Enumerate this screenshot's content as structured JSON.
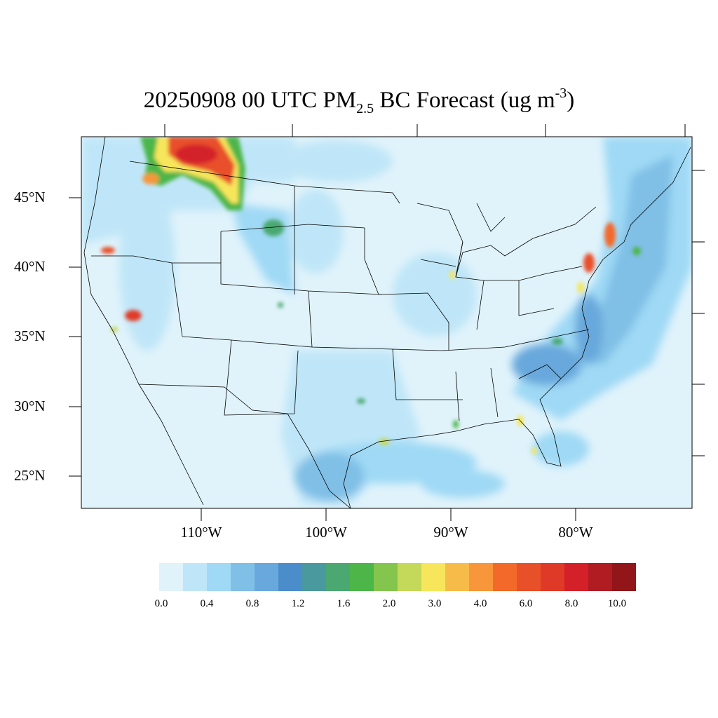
{
  "title": {
    "main": "20250908 00 UTC PM",
    "sub": "2.5",
    "mid": " BC Forecast (ug m",
    "sup": "-3",
    "end": ")"
  },
  "map": {
    "lat_labels": [
      "45°N",
      "40°N",
      "35°N",
      "30°N",
      "25°N"
    ],
    "lon_labels": [
      "110°W",
      "100°W",
      "90°W",
      "80°W"
    ],
    "background_color": "#e0f3fb"
  },
  "colorbar": {
    "colors": [
      "#e0f3fb",
      "#bfe6f8",
      "#9fd9f5",
      "#80bfe6",
      "#68a8dc",
      "#4a8dca",
      "#4a999e",
      "#4aa870",
      "#4cb648",
      "#84c64d",
      "#c4d85a",
      "#f7e65c",
      "#f7bb4a",
      "#f7963b",
      "#f3692a",
      "#e8502a",
      "#df3a27",
      "#d42129",
      "#b11c22",
      "#921619"
    ],
    "labels": [
      "0.0",
      "0.4",
      "0.8",
      "1.2",
      "1.6",
      "2.0",
      "3.0",
      "4.0",
      "6.0",
      "8.0",
      "10.0"
    ]
  }
}
